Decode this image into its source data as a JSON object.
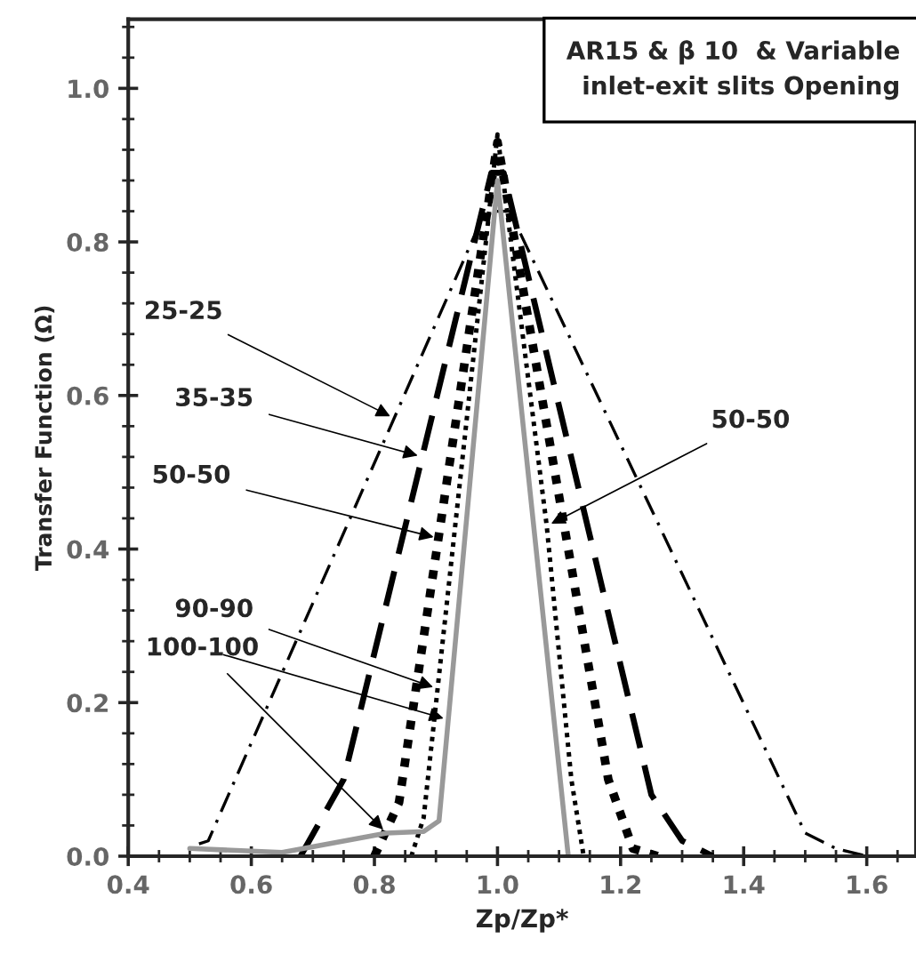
{
  "chart_data": {
    "type": "line",
    "xlabel": "Zp/Zp*",
    "ylabel": "Transfer Function (Ω)",
    "xlim": [
      0.4,
      1.68
    ],
    "ylim": [
      0,
      1.09
    ],
    "xticks": [
      {
        "value": 0.4,
        "label": "0.4"
      },
      {
        "value": 0.6,
        "label": "0.6"
      },
      {
        "value": 0.8,
        "label": "0.8"
      },
      {
        "value": 1.0,
        "label": "1.0"
      },
      {
        "value": 1.2,
        "label": "1.2"
      },
      {
        "value": 1.4,
        "label": "1.4"
      },
      {
        "value": 1.6,
        "label": "1.6"
      }
    ],
    "yticks": [
      {
        "value": 0,
        "label": "0.0"
      },
      {
        "value": 0.2,
        "label": "0.2"
      },
      {
        "value": 0.4,
        "label": "0.4"
      },
      {
        "value": 0.6,
        "label": "0.6"
      },
      {
        "value": 0.8,
        "label": "0.8"
      },
      {
        "value": 1.0,
        "label": "1.0"
      }
    ],
    "grid": false,
    "legend": false,
    "series": [
      {
        "color": "#000000",
        "line_style": "dashdot",
        "x": [
          0.515,
          0.53,
          0.98,
          1.02,
          1.5,
          1.55,
          1.6
        ],
        "values": [
          0.016,
          0.02,
          0.84,
          0.84,
          0.03,
          0.01,
          0.0
        ]
      },
      {
        "color": "#000000",
        "line_style": "dashed",
        "x": [
          0.68,
          0.75,
          0.99,
          1.01,
          1.25,
          1.3,
          1.35
        ],
        "values": [
          0.0,
          0.1,
          0.89,
          0.89,
          0.08,
          0.02,
          0.0
        ]
      },
      {
        "color": "#000000",
        "line_style": "dotted",
        "x": [
          0.8,
          0.84,
          1.0,
          1.18,
          1.22,
          1.26
        ],
        "values": [
          0.0,
          0.07,
          0.93,
          0.1,
          0.01,
          0.0
        ]
      },
      {
        "color": "#000000",
        "line_style": "dotted",
        "x": [
          0.86,
          0.88,
          1.0,
          1.08,
          1.12,
          1.14
        ],
        "values": [
          0.0,
          0.05,
          0.94,
          0.43,
          0.1,
          0.0
        ]
      },
      {
        "color": "#999999",
        "line_style": "solid",
        "x": [
          0.5,
          0.65,
          0.82,
          0.88,
          0.905,
          1.0,
          1.115
        ],
        "values": [
          0.01,
          0.005,
          0.03,
          0.032,
          0.046,
          0.88,
          0.0
        ]
      }
    ],
    "annotations": [
      "AR15 & β 10  & Variable\ninlet-exit slits Opening",
      {
        "text": "25-25",
        "x": 0.833,
        "y": 0.57
      },
      {
        "text": "35-35",
        "x": 0.878,
        "y": 0.52
      },
      {
        "text": "50-50",
        "x": 0.904,
        "y": 0.414
      },
      {
        "text": "50-50",
        "x": 1.08,
        "y": 0.43
      },
      {
        "text": "90-90",
        "x": 0.903,
        "y": 0.218
      },
      {
        "text": "100-100",
        "x": 0.82,
        "y": 0.03
      }
    ]
  }
}
